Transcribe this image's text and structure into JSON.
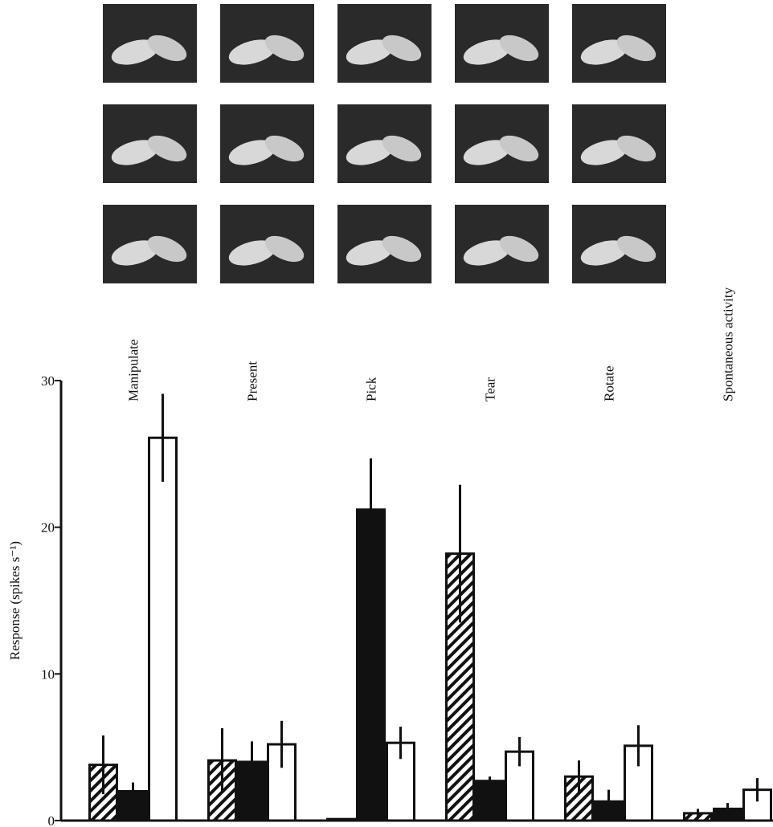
{
  "chart_data": {
    "type": "bar",
    "y_label": "Response (spikes s⁻¹)",
    "categories": [
      "Manipulate",
      "Present",
      "Pick",
      "Tear",
      "Rotate",
      "Spontaneous activity"
    ],
    "series": [
      {
        "fill": "hatch",
        "color": "#111111",
        "values": [
          3.8,
          4.1,
          0.1,
          18.2,
          3.0,
          0.5
        ],
        "errors": [
          2.0,
          2.2,
          0,
          4.7,
          1.1,
          0.3
        ]
      },
      {
        "fill": "solid",
        "color": "#111111",
        "values": [
          2.0,
          4.0,
          21.2,
          2.7,
          1.3,
          0.8
        ],
        "errors": [
          0.6,
          1.4,
          3.5,
          0.3,
          0.8,
          0.4
        ]
      },
      {
        "fill": "open",
        "color": "#111111",
        "values": [
          26.1,
          5.2,
          5.3,
          4.7,
          5.1,
          2.1
        ],
        "errors": [
          3.0,
          1.6,
          1.1,
          1.0,
          1.4,
          0.8
        ]
      }
    ],
    "ylim": [
      0,
      30
    ],
    "yticks": [
      0,
      10,
      20,
      30
    ]
  }
}
